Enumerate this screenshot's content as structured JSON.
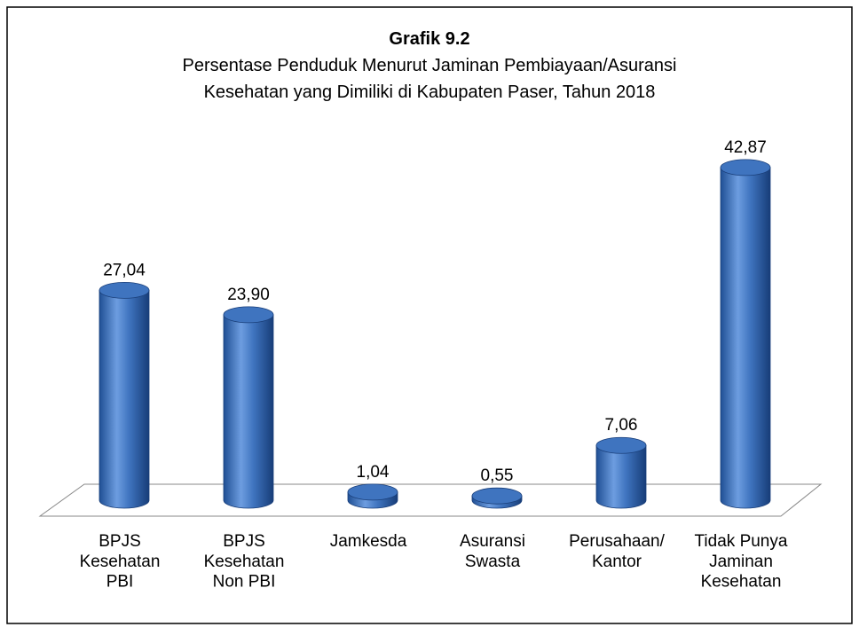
{
  "chart_data": {
    "type": "bar",
    "title": "Grafik 9.2",
    "subtitle": [
      "Persentase Penduduk Menurut Jaminan Pembiayaan/Asuransi",
      "Kesehatan yang Dimiliki di Kabupaten Paser, Tahun 2018"
    ],
    "categories": [
      "BPJS\nKesehatan\nPBI",
      "BPJS\nKesehatan\nNon PBI",
      "Jamkesda",
      "Asuransi\nSwasta",
      "Perusahaan/\nKantor",
      "Tidak Punya\nJaminan\nKesehatan"
    ],
    "values": [
      27.04,
      23.9,
      1.04,
      0.55,
      7.06,
      42.87
    ],
    "value_labels": [
      "27,04",
      "23,90",
      "1,04",
      "0,55",
      "7,06",
      "42,87"
    ],
    "color": "#3f74bf"
  }
}
